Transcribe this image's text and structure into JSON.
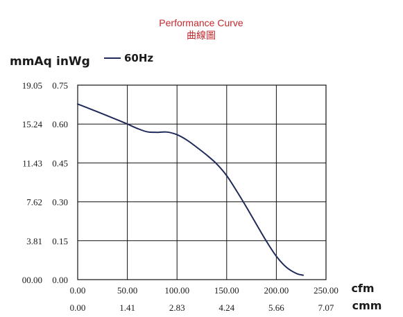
{
  "chart_data": {
    "type": "line",
    "title": "Performance Curve",
    "subtitle": "曲線圖",
    "ylabel_primary": "mmAq",
    "ylabel_secondary": "inWg",
    "xlabel_primary": "cfm",
    "xlabel_secondary": "cmm",
    "xlim": [
      0,
      250
    ],
    "ylim": [
      0,
      0.75
    ],
    "x_ticks": [
      "0.00",
      "50.00",
      "100.00",
      "150.00",
      "200.00",
      "250.00"
    ],
    "x_ticks_secondary": [
      "0.00",
      "1.41",
      "2.83",
      "4.24",
      "5.66",
      "7.07"
    ],
    "y_ticks": [
      "0.00",
      "0.15",
      "0.30",
      "0.45",
      "0.60",
      "0.75"
    ],
    "y_ticks_secondary": [
      "00.00",
      "3.81",
      "7.62",
      "11.43",
      "15.24",
      "19.05"
    ],
    "grid": true,
    "legend": "top-left",
    "line_color": "#1f2a5a",
    "series": [
      {
        "name": "60Hz",
        "x": [
          0,
          20,
          40,
          50,
          60,
          70,
          80,
          90,
          100,
          110,
          120,
          130,
          140,
          150,
          160,
          170,
          180,
          190,
          200,
          210,
          220,
          227
        ],
        "y": [
          0.677,
          0.647,
          0.616,
          0.6,
          0.583,
          0.57,
          0.568,
          0.569,
          0.559,
          0.538,
          0.51,
          0.48,
          0.446,
          0.401,
          0.342,
          0.279,
          0.213,
          0.148,
          0.09,
          0.048,
          0.024,
          0.017
        ]
      }
    ]
  }
}
